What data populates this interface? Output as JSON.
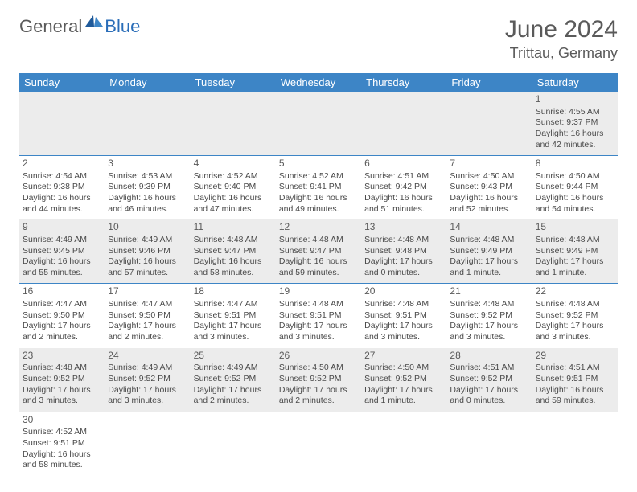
{
  "logo": {
    "gray": "General",
    "blue": "Blue"
  },
  "title": {
    "month": "June 2024",
    "location": "Trittau, Germany"
  },
  "header_bg": "#3d85c6",
  "shaded_bg": "#ececec",
  "dayNames": [
    "Sunday",
    "Monday",
    "Tuesday",
    "Wednesday",
    "Thursday",
    "Friday",
    "Saturday"
  ],
  "weeks": [
    [
      null,
      null,
      null,
      null,
      null,
      null,
      {
        "n": "1",
        "sr": "Sunrise: 4:55 AM",
        "ss": "Sunset: 9:37 PM",
        "d1": "Daylight: 16 hours",
        "d2": "and 42 minutes."
      }
    ],
    [
      {
        "n": "2",
        "sr": "Sunrise: 4:54 AM",
        "ss": "Sunset: 9:38 PM",
        "d1": "Daylight: 16 hours",
        "d2": "and 44 minutes."
      },
      {
        "n": "3",
        "sr": "Sunrise: 4:53 AM",
        "ss": "Sunset: 9:39 PM",
        "d1": "Daylight: 16 hours",
        "d2": "and 46 minutes."
      },
      {
        "n": "4",
        "sr": "Sunrise: 4:52 AM",
        "ss": "Sunset: 9:40 PM",
        "d1": "Daylight: 16 hours",
        "d2": "and 47 minutes."
      },
      {
        "n": "5",
        "sr": "Sunrise: 4:52 AM",
        "ss": "Sunset: 9:41 PM",
        "d1": "Daylight: 16 hours",
        "d2": "and 49 minutes."
      },
      {
        "n": "6",
        "sr": "Sunrise: 4:51 AM",
        "ss": "Sunset: 9:42 PM",
        "d1": "Daylight: 16 hours",
        "d2": "and 51 minutes."
      },
      {
        "n": "7",
        "sr": "Sunrise: 4:50 AM",
        "ss": "Sunset: 9:43 PM",
        "d1": "Daylight: 16 hours",
        "d2": "and 52 minutes."
      },
      {
        "n": "8",
        "sr": "Sunrise: 4:50 AM",
        "ss": "Sunset: 9:44 PM",
        "d1": "Daylight: 16 hours",
        "d2": "and 54 minutes."
      }
    ],
    [
      {
        "n": "9",
        "sr": "Sunrise: 4:49 AM",
        "ss": "Sunset: 9:45 PM",
        "d1": "Daylight: 16 hours",
        "d2": "and 55 minutes."
      },
      {
        "n": "10",
        "sr": "Sunrise: 4:49 AM",
        "ss": "Sunset: 9:46 PM",
        "d1": "Daylight: 16 hours",
        "d2": "and 57 minutes."
      },
      {
        "n": "11",
        "sr": "Sunrise: 4:48 AM",
        "ss": "Sunset: 9:47 PM",
        "d1": "Daylight: 16 hours",
        "d2": "and 58 minutes."
      },
      {
        "n": "12",
        "sr": "Sunrise: 4:48 AM",
        "ss": "Sunset: 9:47 PM",
        "d1": "Daylight: 16 hours",
        "d2": "and 59 minutes."
      },
      {
        "n": "13",
        "sr": "Sunrise: 4:48 AM",
        "ss": "Sunset: 9:48 PM",
        "d1": "Daylight: 17 hours",
        "d2": "and 0 minutes."
      },
      {
        "n": "14",
        "sr": "Sunrise: 4:48 AM",
        "ss": "Sunset: 9:49 PM",
        "d1": "Daylight: 17 hours",
        "d2": "and 1 minute."
      },
      {
        "n": "15",
        "sr": "Sunrise: 4:48 AM",
        "ss": "Sunset: 9:49 PM",
        "d1": "Daylight: 17 hours",
        "d2": "and 1 minute."
      }
    ],
    [
      {
        "n": "16",
        "sr": "Sunrise: 4:47 AM",
        "ss": "Sunset: 9:50 PM",
        "d1": "Daylight: 17 hours",
        "d2": "and 2 minutes."
      },
      {
        "n": "17",
        "sr": "Sunrise: 4:47 AM",
        "ss": "Sunset: 9:50 PM",
        "d1": "Daylight: 17 hours",
        "d2": "and 2 minutes."
      },
      {
        "n": "18",
        "sr": "Sunrise: 4:47 AM",
        "ss": "Sunset: 9:51 PM",
        "d1": "Daylight: 17 hours",
        "d2": "and 3 minutes."
      },
      {
        "n": "19",
        "sr": "Sunrise: 4:48 AM",
        "ss": "Sunset: 9:51 PM",
        "d1": "Daylight: 17 hours",
        "d2": "and 3 minutes."
      },
      {
        "n": "20",
        "sr": "Sunrise: 4:48 AM",
        "ss": "Sunset: 9:51 PM",
        "d1": "Daylight: 17 hours",
        "d2": "and 3 minutes."
      },
      {
        "n": "21",
        "sr": "Sunrise: 4:48 AM",
        "ss": "Sunset: 9:52 PM",
        "d1": "Daylight: 17 hours",
        "d2": "and 3 minutes."
      },
      {
        "n": "22",
        "sr": "Sunrise: 4:48 AM",
        "ss": "Sunset: 9:52 PM",
        "d1": "Daylight: 17 hours",
        "d2": "and 3 minutes."
      }
    ],
    [
      {
        "n": "23",
        "sr": "Sunrise: 4:48 AM",
        "ss": "Sunset: 9:52 PM",
        "d1": "Daylight: 17 hours",
        "d2": "and 3 minutes."
      },
      {
        "n": "24",
        "sr": "Sunrise: 4:49 AM",
        "ss": "Sunset: 9:52 PM",
        "d1": "Daylight: 17 hours",
        "d2": "and 3 minutes."
      },
      {
        "n": "25",
        "sr": "Sunrise: 4:49 AM",
        "ss": "Sunset: 9:52 PM",
        "d1": "Daylight: 17 hours",
        "d2": "and 2 minutes."
      },
      {
        "n": "26",
        "sr": "Sunrise: 4:50 AM",
        "ss": "Sunset: 9:52 PM",
        "d1": "Daylight: 17 hours",
        "d2": "and 2 minutes."
      },
      {
        "n": "27",
        "sr": "Sunrise: 4:50 AM",
        "ss": "Sunset: 9:52 PM",
        "d1": "Daylight: 17 hours",
        "d2": "and 1 minute."
      },
      {
        "n": "28",
        "sr": "Sunrise: 4:51 AM",
        "ss": "Sunset: 9:52 PM",
        "d1": "Daylight: 17 hours",
        "d2": "and 0 minutes."
      },
      {
        "n": "29",
        "sr": "Sunrise: 4:51 AM",
        "ss": "Sunset: 9:51 PM",
        "d1": "Daylight: 16 hours",
        "d2": "and 59 minutes."
      }
    ],
    [
      {
        "n": "30",
        "sr": "Sunrise: 4:52 AM",
        "ss": "Sunset: 9:51 PM",
        "d1": "Daylight: 16 hours",
        "d2": "and 58 minutes."
      },
      null,
      null,
      null,
      null,
      null,
      null
    ]
  ]
}
